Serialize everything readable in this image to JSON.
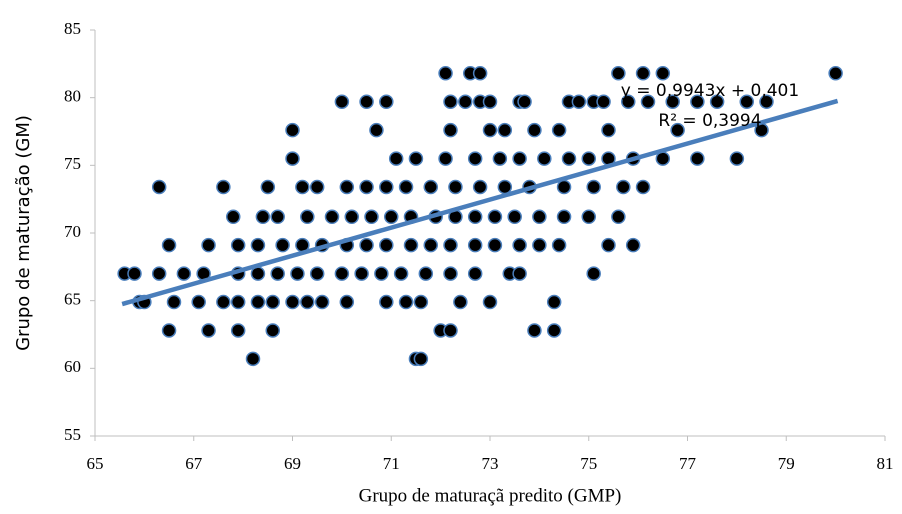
{
  "chart_data": {
    "type": "scatter",
    "x_label": "Grupo de maturaçã predito (GMP)",
    "y_label": "Grupo de maturação (GM)",
    "annotations": [
      "y = 0,9943x + 0,401",
      "R² = 0,3994"
    ],
    "xlim": [
      65,
      81
    ],
    "xticks": [
      65,
      67,
      69,
      71,
      73,
      75,
      77,
      79,
      81
    ],
    "ylim": [
      55,
      85
    ],
    "yticks": [
      55,
      60,
      65,
      70,
      75,
      80,
      85
    ],
    "marker_color": "#000000",
    "marker_edge_color": "#4a7ebb",
    "trendline": {
      "color": "#4a7ebb",
      "x": [
        65.55,
        80.04
      ],
      "y": [
        64.75,
        79.76
      ]
    },
    "x": [
      72.1,
      72.6,
      72.8,
      75.6,
      76.1,
      76.5,
      80.0,
      70.0,
      70.5,
      70.9,
      72.2,
      72.5,
      72.8,
      73.0,
      73.6,
      73.7,
      74.6,
      74.8,
      75.1,
      75.3,
      75.8,
      76.2,
      76.7,
      77.2,
      77.6,
      78.2,
      78.6,
      69.0,
      70.7,
      72.2,
      73.0,
      73.3,
      73.9,
      74.4,
      75.4,
      76.8,
      78.5,
      69.0,
      71.1,
      71.5,
      72.1,
      72.7,
      73.2,
      73.6,
      74.1,
      74.6,
      75.0,
      75.4,
      75.9,
      76.5,
      77.2,
      78.0,
      66.3,
      67.6,
      68.5,
      69.2,
      69.5,
      70.1,
      70.5,
      70.9,
      71.3,
      71.8,
      72.3,
      72.8,
      73.3,
      73.8,
      74.5,
      75.1,
      75.7,
      76.1,
      67.8,
      68.4,
      68.7,
      69.3,
      69.8,
      70.2,
      70.6,
      71.0,
      71.4,
      71.9,
      72.3,
      72.7,
      73.1,
      73.5,
      74.0,
      74.5,
      75.0,
      75.6,
      66.5,
      67.3,
      67.9,
      68.3,
      68.8,
      69.2,
      69.6,
      70.1,
      70.5,
      70.9,
      71.4,
      71.8,
      72.2,
      72.7,
      73.1,
      73.6,
      74.0,
      74.4,
      75.4,
      75.9,
      65.6,
      65.8,
      66.3,
      66.8,
      67.2,
      67.9,
      68.3,
      68.7,
      69.1,
      69.5,
      70.0,
      70.4,
      70.8,
      71.2,
      71.7,
      72.2,
      72.7,
      73.4,
      73.6,
      75.1,
      65.9,
      66.0,
      66.6,
      67.1,
      67.6,
      67.9,
      68.3,
      68.6,
      69.0,
      69.3,
      69.6,
      70.1,
      70.9,
      71.3,
      71.6,
      72.4,
      73.0,
      74.3,
      66.5,
      67.3,
      67.9,
      68.6,
      72.0,
      72.2,
      73.9,
      74.3,
      68.2,
      71.5,
      71.6
    ],
    "y": [
      81.8,
      81.8,
      81.8,
      81.8,
      81.8,
      81.8,
      81.8,
      79.7,
      79.7,
      79.7,
      79.7,
      79.7,
      79.7,
      79.7,
      79.7,
      79.7,
      79.7,
      79.7,
      79.7,
      79.7,
      79.7,
      79.7,
      79.7,
      79.7,
      79.7,
      79.7,
      79.7,
      77.6,
      77.6,
      77.6,
      77.6,
      77.6,
      77.6,
      77.6,
      77.6,
      77.6,
      77.6,
      75.5,
      75.5,
      75.5,
      75.5,
      75.5,
      75.5,
      75.5,
      75.5,
      75.5,
      75.5,
      75.5,
      75.5,
      75.5,
      75.5,
      75.5,
      73.4,
      73.4,
      73.4,
      73.4,
      73.4,
      73.4,
      73.4,
      73.4,
      73.4,
      73.4,
      73.4,
      73.4,
      73.4,
      73.4,
      73.4,
      73.4,
      73.4,
      73.4,
      71.2,
      71.2,
      71.2,
      71.2,
      71.2,
      71.2,
      71.2,
      71.2,
      71.2,
      71.2,
      71.2,
      71.2,
      71.2,
      71.2,
      71.2,
      71.2,
      71.2,
      71.2,
      69.1,
      69.1,
      69.1,
      69.1,
      69.1,
      69.1,
      69.1,
      69.1,
      69.1,
      69.1,
      69.1,
      69.1,
      69.1,
      69.1,
      69.1,
      69.1,
      69.1,
      69.1,
      69.1,
      69.1,
      67.0,
      67.0,
      67.0,
      67.0,
      67.0,
      67.0,
      67.0,
      67.0,
      67.0,
      67.0,
      67.0,
      67.0,
      67.0,
      67.0,
      67.0,
      67.0,
      67.0,
      67.0,
      67.0,
      67.0,
      64.9,
      64.9,
      64.9,
      64.9,
      64.9,
      64.9,
      64.9,
      64.9,
      64.9,
      64.9,
      64.9,
      64.9,
      64.9,
      64.9,
      64.9,
      64.9,
      64.9,
      64.9,
      62.8,
      62.8,
      62.8,
      62.8,
      62.8,
      62.8,
      62.8,
      62.8,
      60.7,
      60.7,
      60.7
    ]
  }
}
